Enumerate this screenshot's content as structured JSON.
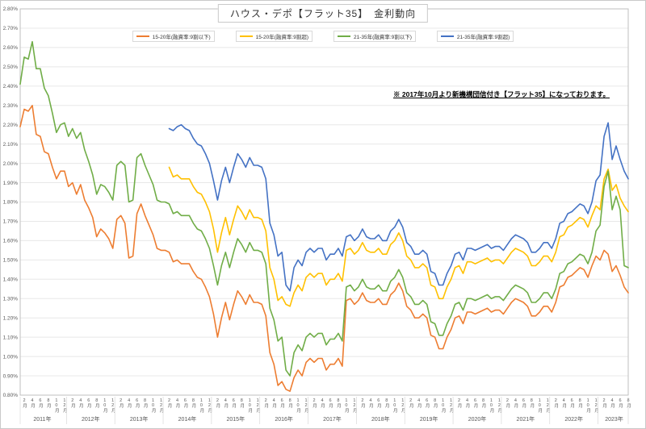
{
  "chart_data": {
    "type": "line",
    "title": "ハウス・デポ【フラット35】　金利動向",
    "annotation": "※ 2017年10月より新機構団信付き【フラット35】になっております。",
    "legend_position": "top",
    "grid": true,
    "y_axis": {
      "min": 0.8,
      "max": 2.8,
      "step": 0.1,
      "unit": "%",
      "label_format": "0.00%"
    },
    "x_axis": {
      "start_year": 2011,
      "start_month": 1,
      "months": 152,
      "month_label_suffix": "月",
      "year_label_suffix": "年",
      "labeled_months": [
        2,
        4,
        6,
        8,
        10,
        12
      ],
      "years": [
        2011,
        2012,
        2013,
        2014,
        2015,
        2016,
        2017,
        2018,
        2019,
        2020,
        2021,
        2022,
        2023
      ]
    },
    "series": [
      {
        "name": "15-20年(融資率:9割以下)",
        "color": "#ED7D31",
        "values": [
          2.19,
          2.28,
          2.27,
          2.3,
          2.15,
          2.14,
          2.06,
          2.05,
          1.98,
          1.92,
          1.96,
          1.96,
          1.88,
          1.9,
          1.84,
          1.89,
          1.81,
          1.77,
          1.72,
          1.62,
          1.66,
          1.64,
          1.61,
          1.56,
          1.71,
          1.73,
          1.69,
          1.51,
          1.52,
          1.74,
          1.79,
          1.73,
          1.68,
          1.63,
          1.56,
          1.55,
          1.55,
          1.54,
          1.49,
          1.5,
          1.48,
          1.48,
          1.48,
          1.44,
          1.41,
          1.4,
          1.36,
          1.31,
          1.22,
          1.1,
          1.2,
          1.28,
          1.19,
          1.27,
          1.34,
          1.31,
          1.27,
          1.32,
          1.28,
          1.28,
          1.27,
          1.21,
          1.02,
          0.96,
          0.85,
          0.87,
          0.83,
          0.82,
          0.89,
          0.93,
          0.9,
          0.97,
          0.99,
          0.97,
          0.99,
          0.99,
          0.93,
          0.96,
          0.96,
          0.99,
          0.95,
          1.29,
          1.3,
          1.27,
          1.29,
          1.33,
          1.29,
          1.28,
          1.28,
          1.3,
          1.27,
          1.27,
          1.32,
          1.34,
          1.38,
          1.34,
          1.26,
          1.24,
          1.2,
          1.2,
          1.22,
          1.2,
          1.11,
          1.1,
          1.04,
          1.04,
          1.1,
          1.14,
          1.2,
          1.21,
          1.17,
          1.23,
          1.23,
          1.22,
          1.23,
          1.24,
          1.25,
          1.23,
          1.24,
          1.24,
          1.22,
          1.25,
          1.28,
          1.3,
          1.29,
          1.28,
          1.26,
          1.21,
          1.21,
          1.23,
          1.26,
          1.26,
          1.23,
          1.28,
          1.36,
          1.37,
          1.41,
          1.42,
          1.44,
          1.46,
          1.45,
          1.41,
          1.47,
          1.52,
          1.5,
          1.55,
          1.53,
          1.44,
          1.47,
          1.42,
          1.36,
          1.33
        ]
      },
      {
        "name": "15-20年(融資率:9割超)",
        "color": "#FFC000",
        "values": [
          null,
          null,
          null,
          null,
          null,
          null,
          null,
          null,
          null,
          null,
          null,
          null,
          null,
          null,
          null,
          null,
          null,
          null,
          null,
          null,
          null,
          null,
          null,
          null,
          null,
          null,
          null,
          null,
          null,
          null,
          null,
          null,
          null,
          null,
          null,
          null,
          null,
          1.98,
          1.93,
          1.94,
          1.92,
          1.92,
          1.92,
          1.88,
          1.85,
          1.84,
          1.8,
          1.75,
          1.66,
          1.54,
          1.64,
          1.72,
          1.63,
          1.71,
          1.78,
          1.75,
          1.71,
          1.76,
          1.72,
          1.72,
          1.71,
          1.65,
          1.46,
          1.4,
          1.29,
          1.31,
          1.27,
          1.26,
          1.33,
          1.37,
          1.34,
          1.41,
          1.43,
          1.41,
          1.43,
          1.43,
          1.37,
          1.4,
          1.4,
          1.43,
          1.39,
          1.55,
          1.56,
          1.53,
          1.55,
          1.59,
          1.55,
          1.54,
          1.54,
          1.56,
          1.53,
          1.53,
          1.58,
          1.6,
          1.64,
          1.6,
          1.52,
          1.5,
          1.46,
          1.46,
          1.48,
          1.46,
          1.37,
          1.36,
          1.3,
          1.3,
          1.36,
          1.4,
          1.46,
          1.47,
          1.43,
          1.49,
          1.49,
          1.48,
          1.49,
          1.5,
          1.51,
          1.49,
          1.5,
          1.5,
          1.48,
          1.51,
          1.54,
          1.56,
          1.55,
          1.54,
          1.52,
          1.47,
          1.47,
          1.49,
          1.52,
          1.52,
          1.49,
          1.54,
          1.62,
          1.63,
          1.67,
          1.68,
          1.7,
          1.72,
          1.71,
          1.67,
          1.73,
          1.78,
          1.76,
          1.92,
          1.97,
          1.86,
          1.89,
          1.82,
          1.78,
          1.75
        ]
      },
      {
        "name": "21-35年(融資率:9割以下)",
        "color": "#70AD47",
        "values": [
          2.41,
          2.55,
          2.54,
          2.63,
          2.49,
          2.49,
          2.39,
          2.35,
          2.26,
          2.16,
          2.2,
          2.21,
          2.14,
          2.18,
          2.13,
          2.16,
          2.07,
          2.01,
          1.94,
          1.84,
          1.89,
          1.88,
          1.85,
          1.81,
          1.99,
          2.01,
          1.99,
          1.8,
          1.81,
          2.03,
          2.05,
          1.99,
          1.94,
          1.89,
          1.81,
          1.8,
          1.8,
          1.79,
          1.74,
          1.75,
          1.73,
          1.73,
          1.73,
          1.69,
          1.66,
          1.65,
          1.61,
          1.56,
          1.47,
          1.37,
          1.47,
          1.54,
          1.46,
          1.54,
          1.61,
          1.58,
          1.54,
          1.59,
          1.55,
          1.55,
          1.54,
          1.48,
          1.25,
          1.19,
          1.08,
          1.1,
          0.93,
          0.9,
          1.02,
          1.06,
          1.03,
          1.1,
          1.12,
          1.1,
          1.12,
          1.12,
          1.06,
          1.09,
          1.09,
          1.12,
          1.08,
          1.36,
          1.37,
          1.34,
          1.36,
          1.4,
          1.36,
          1.35,
          1.35,
          1.37,
          1.34,
          1.34,
          1.39,
          1.41,
          1.45,
          1.41,
          1.33,
          1.31,
          1.27,
          1.27,
          1.29,
          1.27,
          1.18,
          1.17,
          1.11,
          1.11,
          1.17,
          1.21,
          1.27,
          1.28,
          1.24,
          1.3,
          1.3,
          1.29,
          1.3,
          1.31,
          1.32,
          1.3,
          1.31,
          1.31,
          1.29,
          1.32,
          1.35,
          1.37,
          1.36,
          1.35,
          1.33,
          1.28,
          1.28,
          1.3,
          1.33,
          1.33,
          1.3,
          1.35,
          1.43,
          1.44,
          1.48,
          1.49,
          1.51,
          1.53,
          1.52,
          1.48,
          1.54,
          1.65,
          1.68,
          1.88,
          1.96,
          1.76,
          1.83,
          1.76,
          1.47,
          1.46
        ]
      },
      {
        "name": "21-35年(融資率:9割超)",
        "color": "#4472C4",
        "values": [
          null,
          null,
          null,
          null,
          null,
          null,
          null,
          null,
          null,
          null,
          null,
          null,
          null,
          null,
          null,
          null,
          null,
          null,
          null,
          null,
          null,
          null,
          null,
          null,
          null,
          null,
          null,
          null,
          null,
          null,
          null,
          null,
          null,
          null,
          null,
          null,
          null,
          2.18,
          2.17,
          2.19,
          2.2,
          2.18,
          2.17,
          2.13,
          2.1,
          2.09,
          2.05,
          2.0,
          1.91,
          1.81,
          1.91,
          1.98,
          1.9,
          1.98,
          2.05,
          2.02,
          1.98,
          2.03,
          1.99,
          1.99,
          1.98,
          1.92,
          1.69,
          1.63,
          1.52,
          1.54,
          1.37,
          1.34,
          1.46,
          1.5,
          1.47,
          1.54,
          1.56,
          1.54,
          1.56,
          1.56,
          1.5,
          1.53,
          1.53,
          1.56,
          1.52,
          1.62,
          1.63,
          1.6,
          1.62,
          1.66,
          1.62,
          1.61,
          1.61,
          1.63,
          1.6,
          1.6,
          1.65,
          1.67,
          1.71,
          1.67,
          1.59,
          1.57,
          1.53,
          1.53,
          1.55,
          1.53,
          1.44,
          1.43,
          1.37,
          1.37,
          1.43,
          1.47,
          1.53,
          1.54,
          1.5,
          1.56,
          1.56,
          1.55,
          1.56,
          1.57,
          1.58,
          1.56,
          1.57,
          1.57,
          1.55,
          1.58,
          1.61,
          1.63,
          1.62,
          1.61,
          1.59,
          1.54,
          1.54,
          1.56,
          1.59,
          1.59,
          1.56,
          1.61,
          1.69,
          1.7,
          1.74,
          1.75,
          1.77,
          1.79,
          1.78,
          1.74,
          1.8,
          1.91,
          1.94,
          2.14,
          2.21,
          2.02,
          2.09,
          2.02,
          1.96,
          1.92
        ]
      }
    ],
    "colors": {
      "grid": "#e8e8e8",
      "axis": "#bfbfbf",
      "tick_text": "#595959"
    }
  }
}
